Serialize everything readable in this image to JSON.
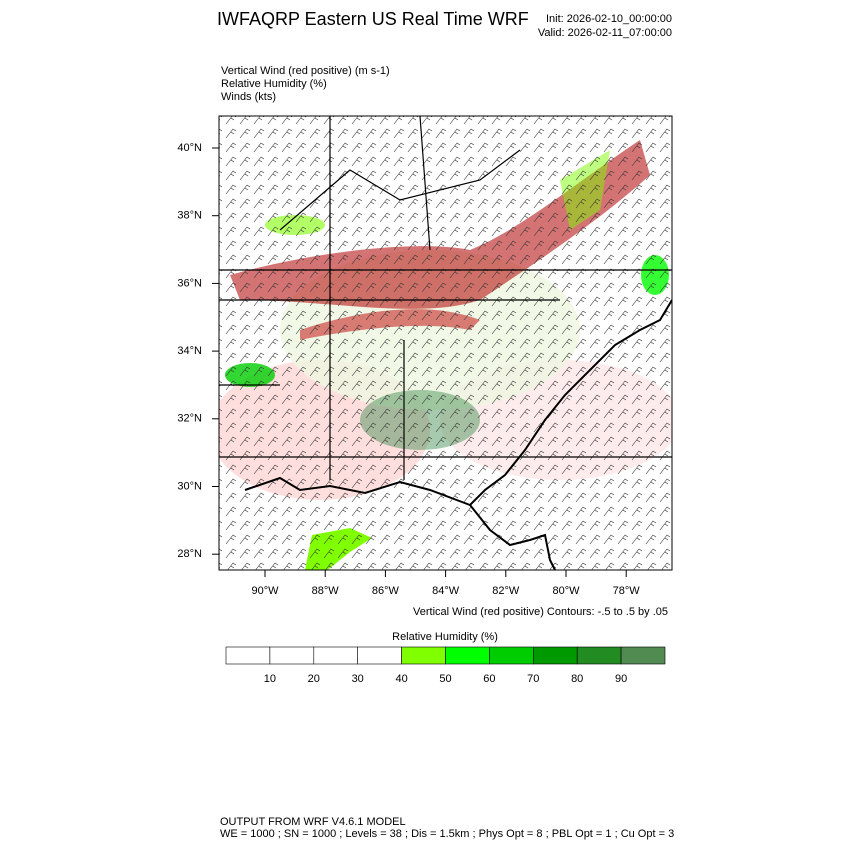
{
  "header": {
    "title": "IWFAQRP Eastern US Real Time WRF",
    "init": "Init: 2026-02-10_00:00:00",
    "valid": "Valid: 2026-02-11_07:00:00"
  },
  "fields": [
    "Vertical Wind (red positive)   (m s-1)",
    "Relative Humidity   (%)",
    "Winds   (kts)"
  ],
  "map": {
    "lat_labels": [
      "40°N",
      "38°N",
      "36°N",
      "34°N",
      "32°N",
      "30°N",
      "28°N"
    ],
    "lon_labels": [
      "90°W",
      "88°W",
      "86°W",
      "84°W",
      "82°W",
      "80°W",
      "78°W"
    ],
    "contour_note": "Vertical Wind (red positive) Contours: -.5 to .5 by .05"
  },
  "colorbar": {
    "title": "Relative Humidity  (%)",
    "labels": [
      "10",
      "20",
      "30",
      "40",
      "50",
      "60",
      "70",
      "80",
      "90"
    ],
    "colors": [
      "#ffffff",
      "#ffffff",
      "#ffffff",
      "#ffffff",
      "#80ff00",
      "#00ff00",
      "#00cd00",
      "#009a00",
      "#228b22",
      "#528b52"
    ]
  },
  "footer": [
    "OUTPUT FROM WRF V4.6.1 MODEL",
    "WE = 1000 ; SN = 1000 ; Levels = 38 ; Dis = 1.5km ; Phys Opt = 8 ; PBL Opt = 1 ; Cu Opt = 3"
  ]
}
